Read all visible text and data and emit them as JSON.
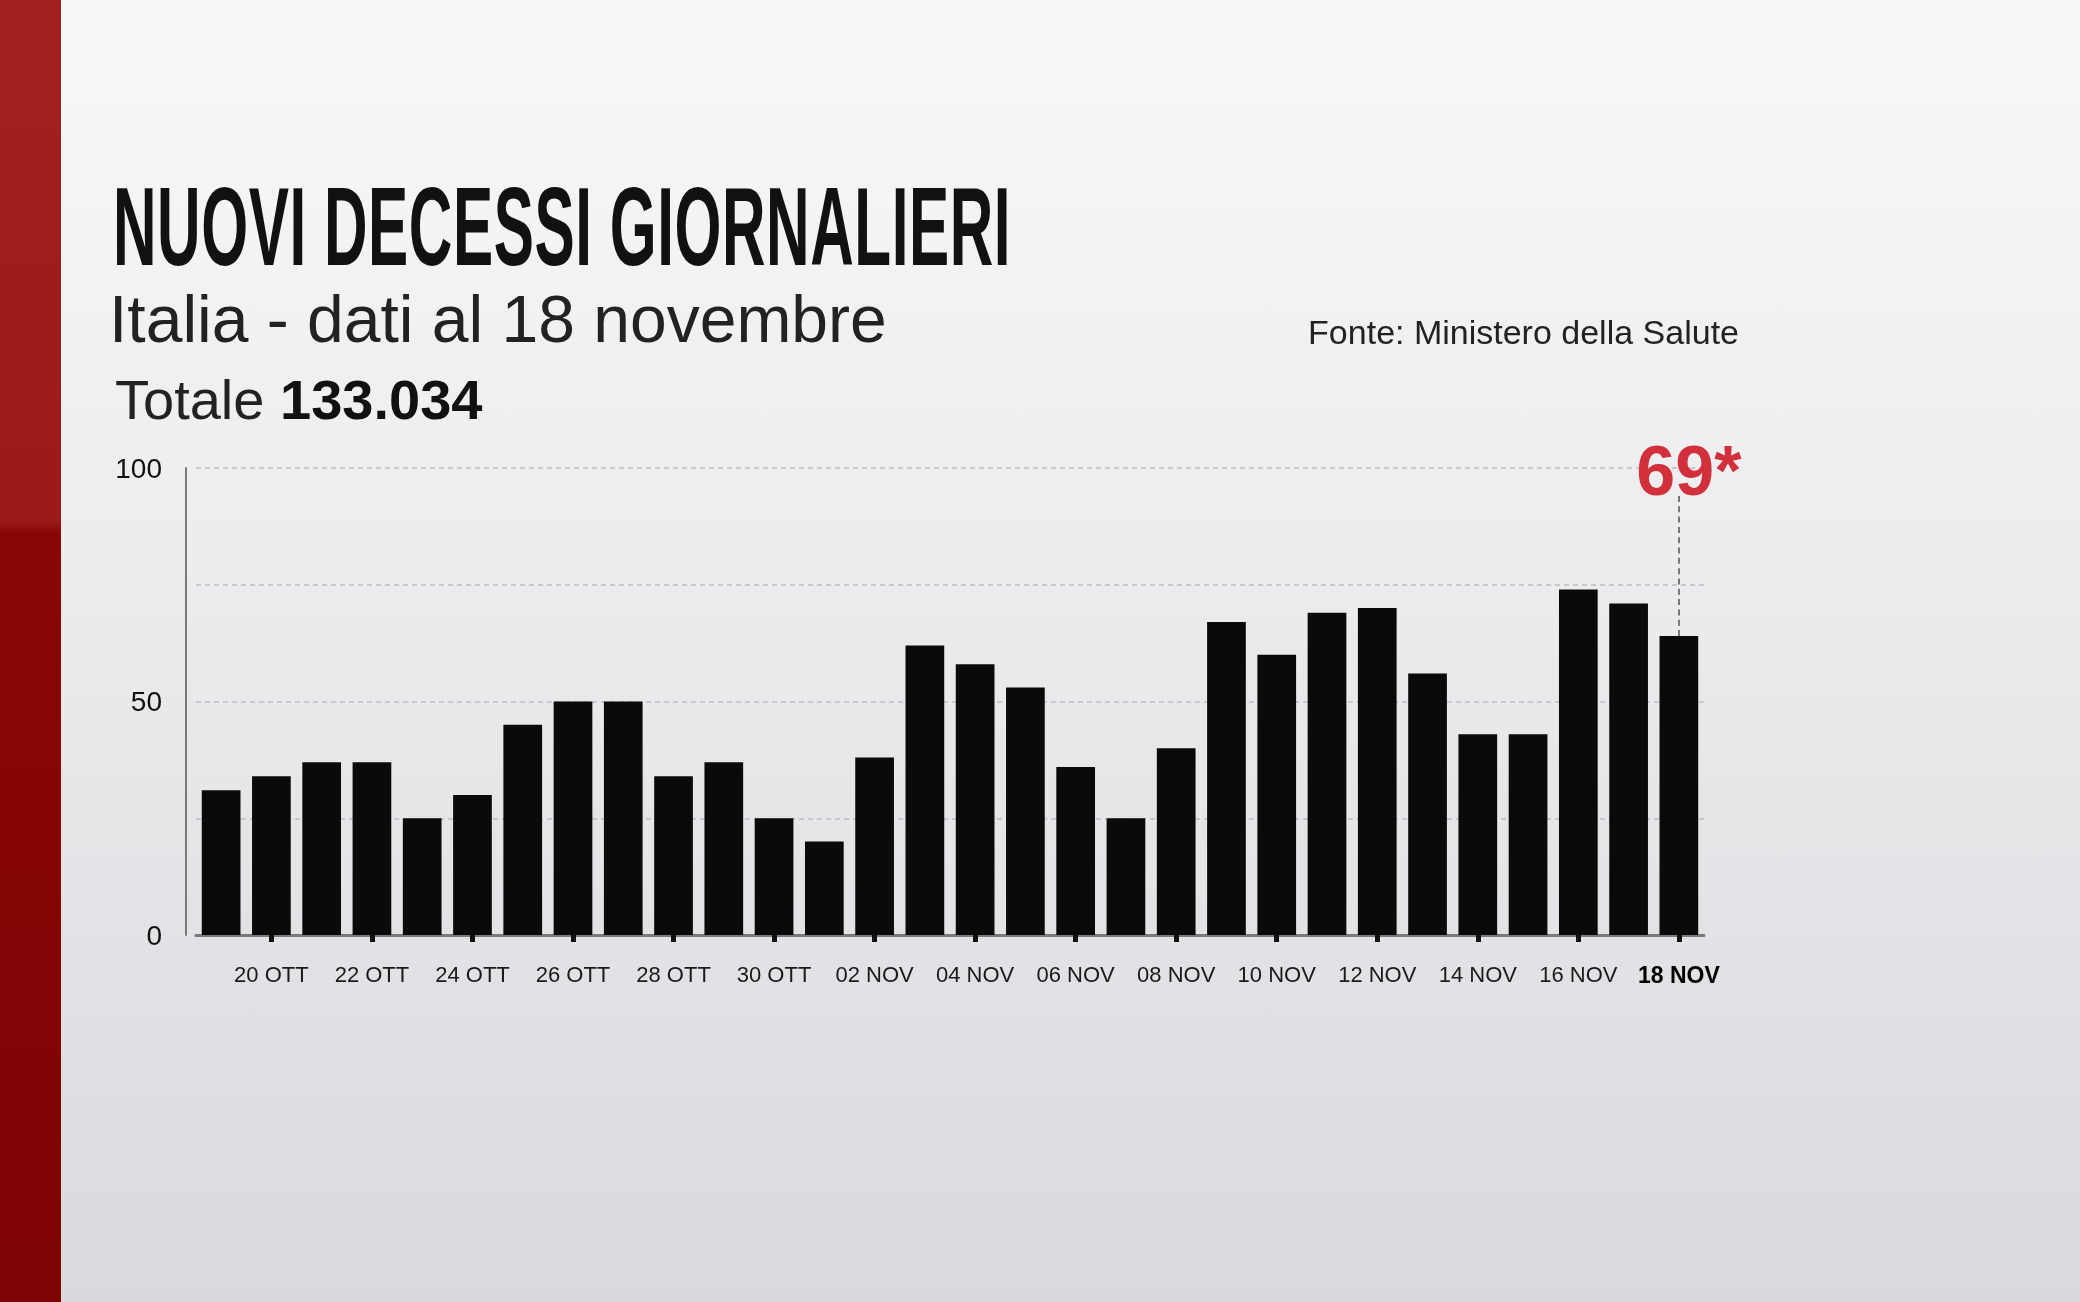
{
  "chart_data": {
    "type": "bar",
    "title": "NUOVI DECESSI GIORNALIERI",
    "subtitle": "Italia - dati al 18 novembre",
    "annotations": [
      "Totale 133.034",
      "Fonte: Ministero della Salute",
      {
        "text": "69*",
        "x": "18 NOV",
        "y": 64
      }
    ],
    "categories": [
      null,
      "20 OTT",
      null,
      "22 OTT",
      null,
      "24 OTT",
      null,
      "26 OTT",
      null,
      "28 OTT",
      null,
      "30 OTT",
      null,
      "02 NOV",
      null,
      "04 NOV",
      null,
      "06 NOV",
      null,
      "08 NOV",
      null,
      "10 NOV",
      null,
      "12 NOV",
      null,
      "14 NOV",
      null,
      "16 NOV",
      null,
      "18 NOV"
    ],
    "values": [
      31,
      34,
      37,
      37,
      25,
      30,
      45,
      50,
      50,
      34,
      37,
      25,
      20,
      38,
      62,
      58,
      53,
      36,
      25,
      40,
      67,
      60,
      69,
      70,
      56,
      43,
      43,
      74,
      71,
      64
    ],
    "color": "#0a0a0a",
    "ylim": [
      0,
      100
    ],
    "yticks": [
      0,
      {
        "value": 25,
        "label": null
      },
      50,
      {
        "value": 75,
        "label": null
      },
      100
    ],
    "grid": "y"
  }
}
